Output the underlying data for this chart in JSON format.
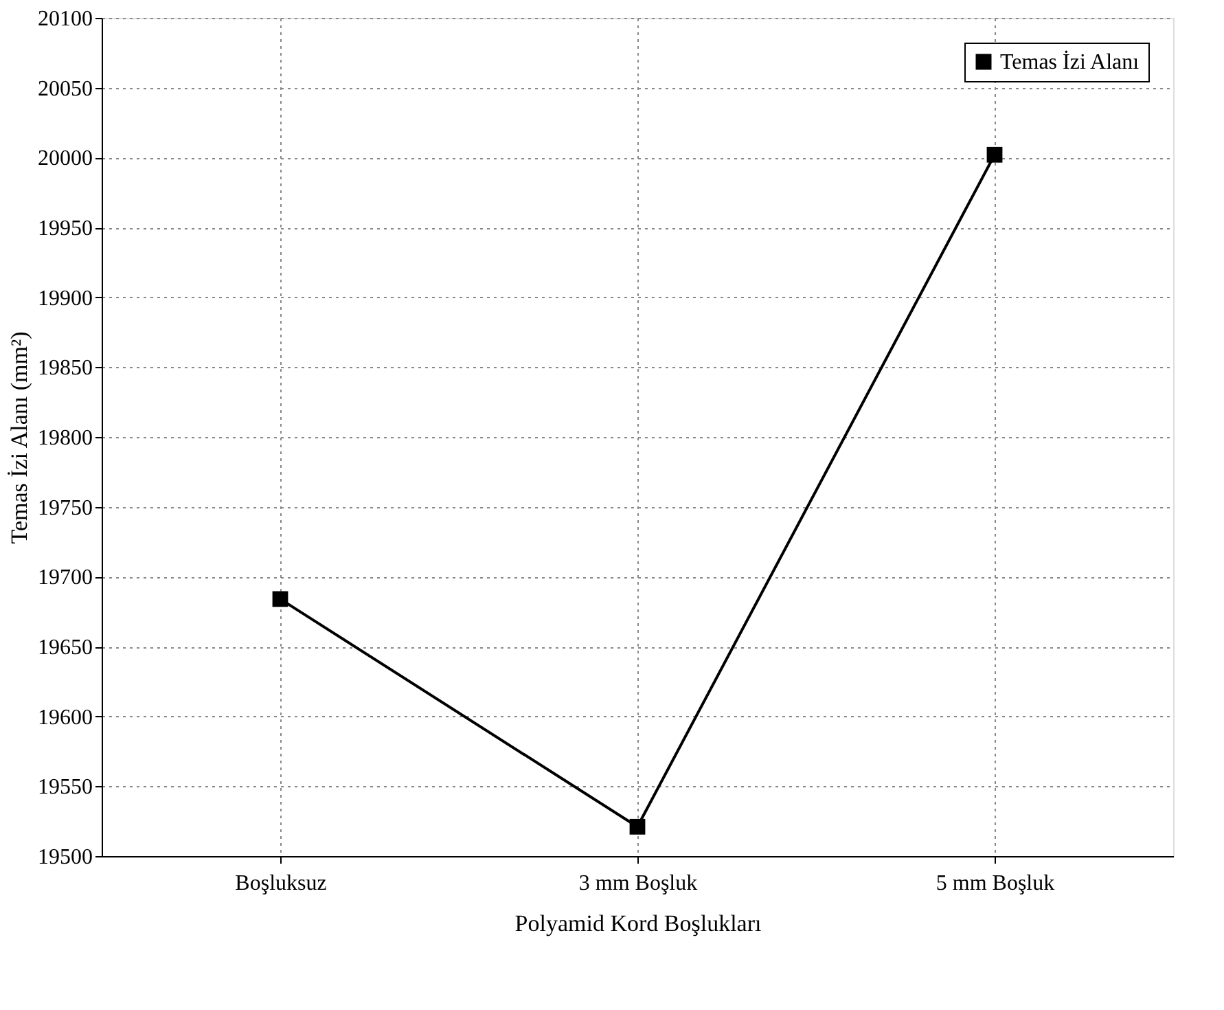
{
  "chart_data": {
    "type": "line",
    "xlabel": "Polyamid Kord Boşlukları",
    "ylabel": "Temas İzi Alanı (mm²)",
    "categories": [
      "Boşluksuz",
      "3 mm Boşluk",
      "5 mm Boşluk"
    ],
    "series": [
      {
        "name": "Temas İzi Alanı",
        "color": "#000000",
        "values": [
          19684,
          19521,
          20002
        ]
      }
    ],
    "ylim": [
      19500,
      20100
    ],
    "yticks": [
      19500,
      19550,
      19600,
      19650,
      19700,
      19750,
      19800,
      19850,
      19900,
      19950,
      20000,
      20050,
      20100
    ],
    "grid": true,
    "legend": "top right",
    "marker": "square",
    "line_style": "solid"
  }
}
